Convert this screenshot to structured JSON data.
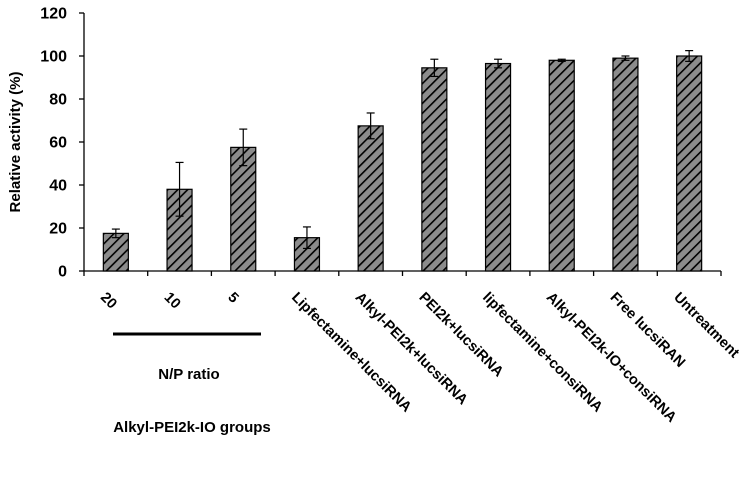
{
  "chart_data": {
    "type": "bar",
    "title": "",
    "xlabel": "",
    "ylabel": "Relative activity (%)",
    "ylim": [
      0,
      120
    ],
    "yticks": [
      0,
      20,
      40,
      60,
      80,
      100,
      120
    ],
    "grid": false,
    "legend": "none",
    "bar_fill": "#8c8c8c",
    "bar_hatch": "diagonal",
    "categories": [
      "20",
      "10",
      "5",
      "Lipfectamine+lucsiRNA",
      "Alkyl-PEI2k+lucsiRNA",
      "PEI2k+lucsiRNA",
      "lipfectamine+consiRNA",
      "Alkyl-PEI2k-IO+consiRNA",
      "Free lucsiRAN",
      "Untreatment"
    ],
    "values": [
      17.5,
      38,
      57.5,
      15.5,
      67.5,
      94.5,
      96.5,
      98,
      99,
      100
    ],
    "errors": [
      2,
      12.5,
      8.5,
      5,
      6,
      4,
      2,
      0.5,
      1,
      2.5
    ],
    "annotations": {
      "group_line_label": "N/P ratio",
      "group_label": "Alkyl-PEI2k-IO groups"
    }
  }
}
